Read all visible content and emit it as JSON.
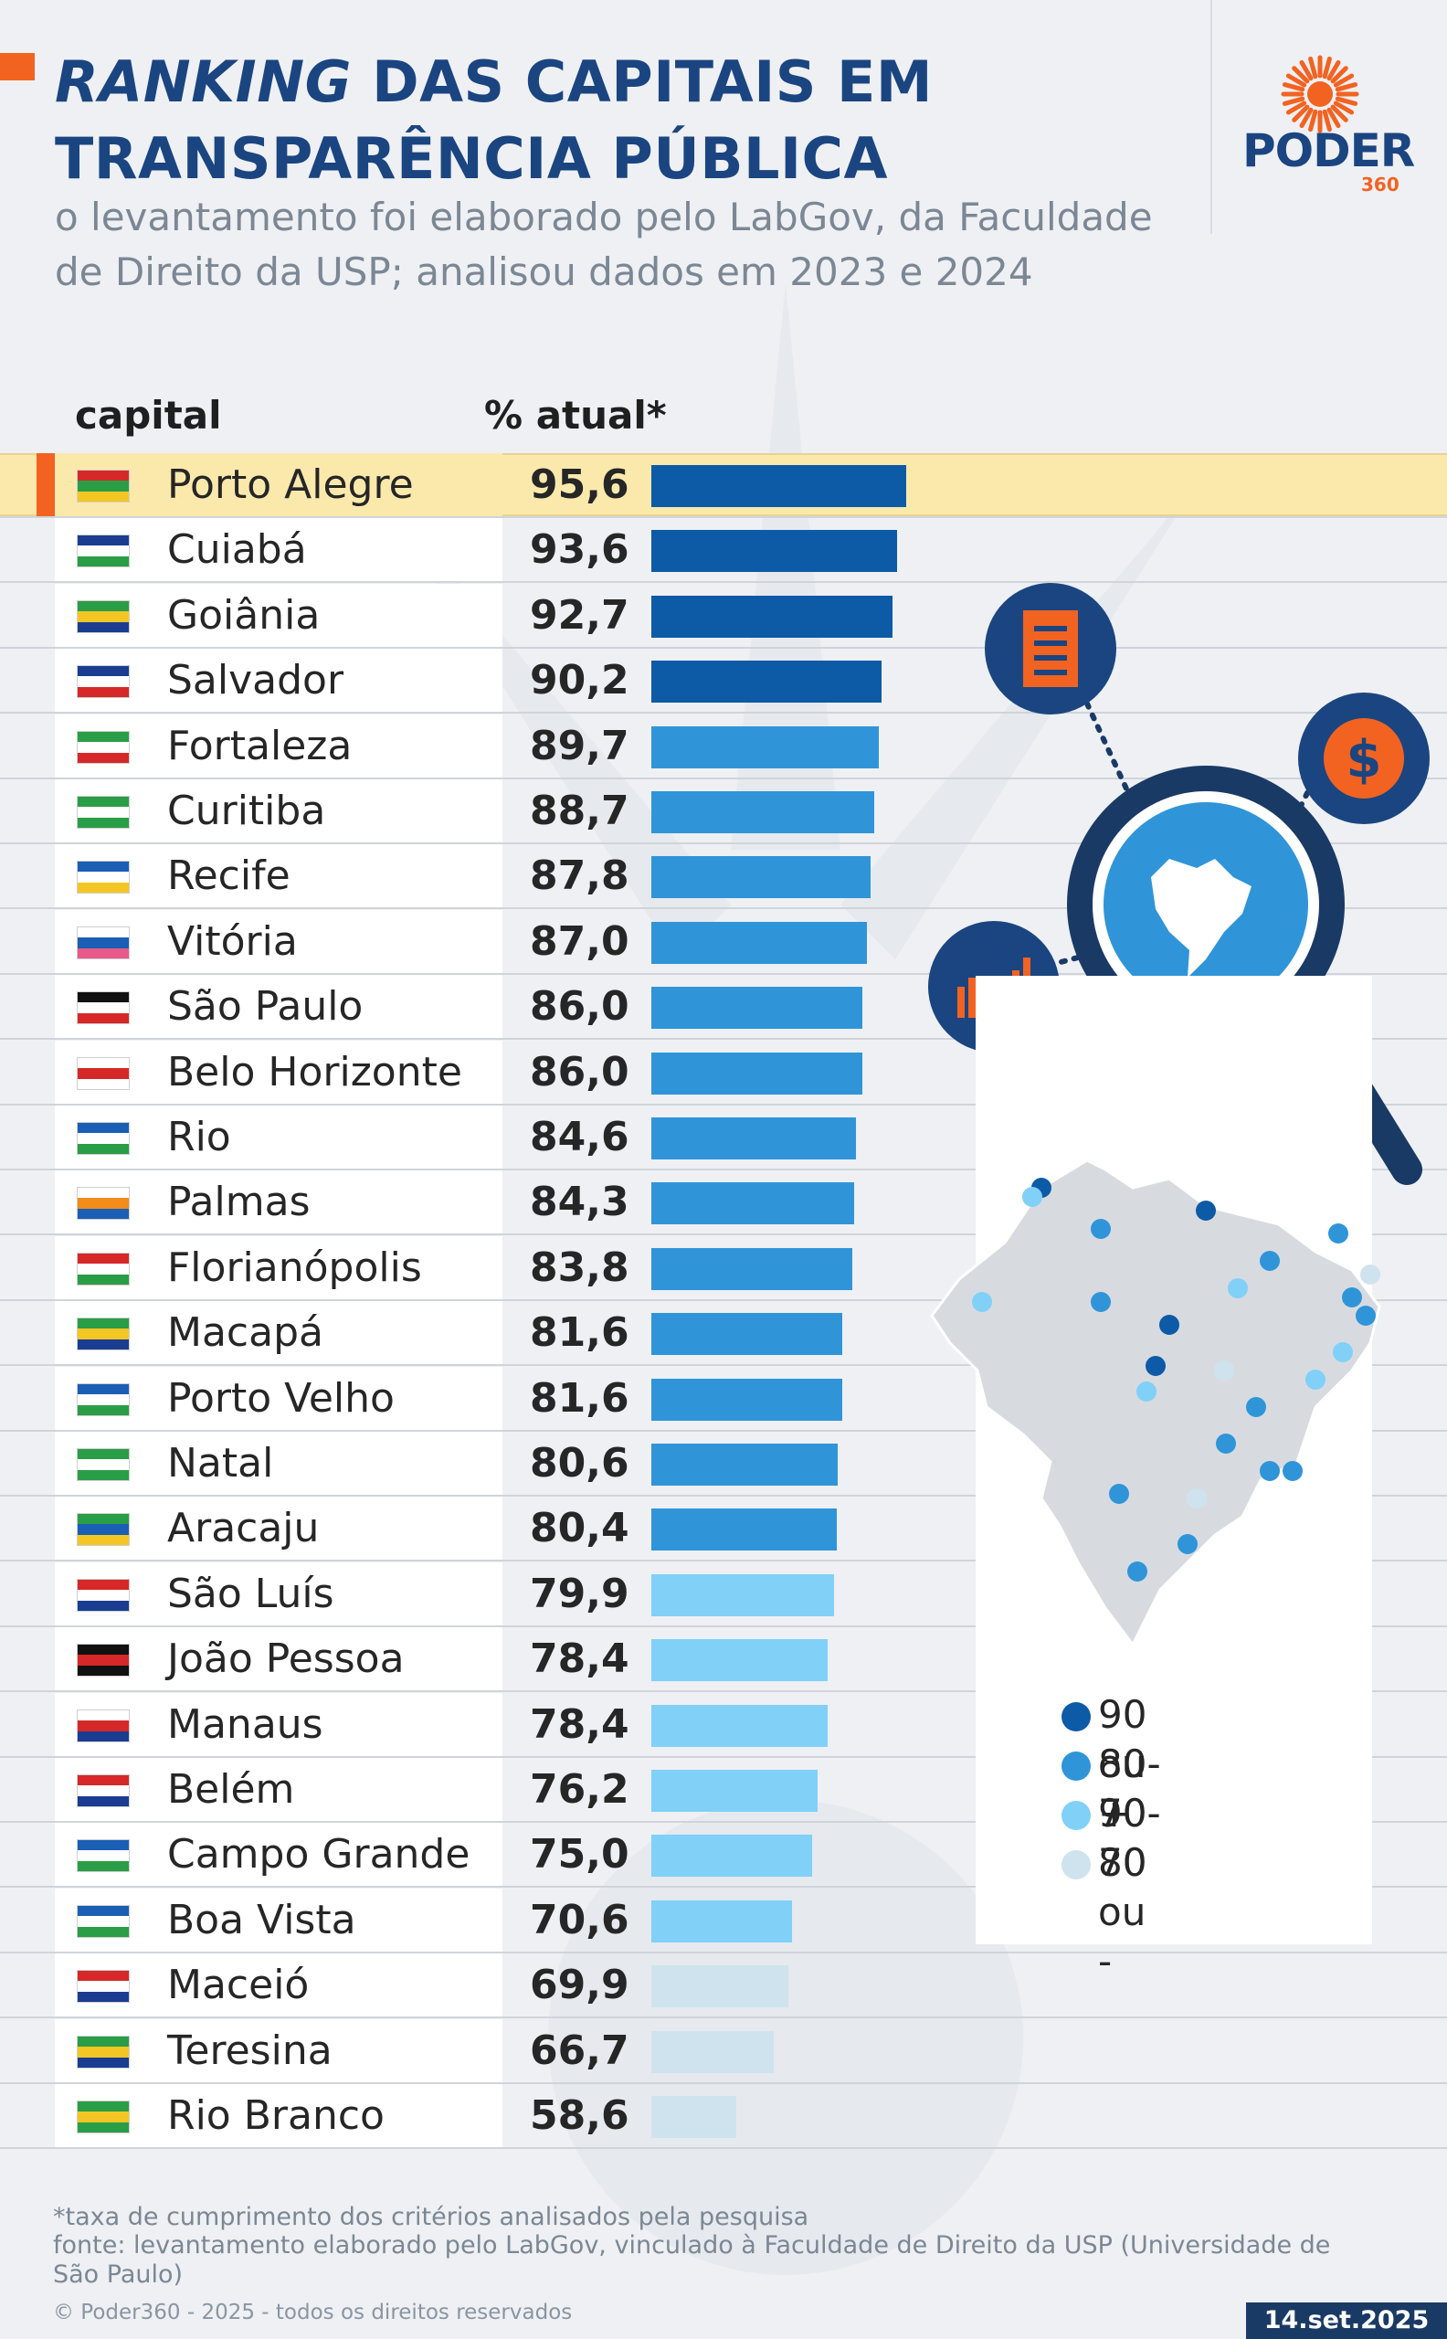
{
  "header": {
    "title_italic": "RANKING",
    "title_rest1": " DAS CAPITAIS EM",
    "title_line2": "TRANSPARÊNCIA PÚBLICA",
    "subtitle": "o levantamento foi elaborado pelo LabGov, da Faculdade de Direito da USP; analisou dados em 2023 e 2024",
    "logo_word": "PODER",
    "logo_num": "360"
  },
  "columns": {
    "capital": "capital",
    "value": "% atual*"
  },
  "colors": {
    "brand_orange": "#f26322",
    "navy": "#1a4580",
    "tier_90": "#0d5aa7",
    "tier_80": "#2f95d8",
    "tier_70": "#80d0f8",
    "tier_low": "#cfe3ee",
    "highlight": "#fbe9ac"
  },
  "chart_data": {
    "type": "bar",
    "orientation": "horizontal",
    "categories": [
      "Porto Alegre",
      "Cuiabá",
      "Goiânia",
      "Salvador",
      "Fortaleza",
      "Curitiba",
      "Recife",
      "Vitória",
      "São Paulo",
      "Belo Horizonte",
      "Rio",
      "Palmas",
      "Florianópolis",
      "Macapá",
      "Porto Velho",
      "Natal",
      "Aracaju",
      "São Luís",
      "João Pessoa",
      "Manaus",
      "Belém",
      "Campo Grande",
      "Boa Vista",
      "Maceió",
      "Teresina",
      "Rio Branco"
    ],
    "values": [
      95.6,
      93.6,
      92.7,
      90.2,
      89.7,
      88.7,
      87.8,
      87.0,
      86.0,
      86.0,
      84.6,
      84.3,
      83.8,
      81.6,
      81.6,
      80.6,
      80.4,
      79.9,
      78.4,
      78.4,
      76.2,
      75.0,
      70.6,
      69.9,
      66.7,
      58.6
    ],
    "value_labels": [
      "95,6",
      "93,6",
      "92,7",
      "90,2",
      "89,7",
      "88,7",
      "87,8",
      "87,0",
      "86,0",
      "86,0",
      "84,6",
      "84,3",
      "83,8",
      "81,6",
      "81,6",
      "80,6",
      "80,4",
      "79,9",
      "78,4",
      "78,4",
      "76,2",
      "75,0",
      "70,6",
      "69,9",
      "66,7",
      "58,6"
    ],
    "highlighted": "Porto Alegre",
    "xlim": [
      0,
      100
    ],
    "legend": {
      "placement": "right",
      "entries": [
        {
          "label": "90 ou +",
          "color": "#0d5aa7"
        },
        {
          "label": "80-90",
          "color": "#2f95d8"
        },
        {
          "label": "70-80",
          "color": "#80d0f8"
        },
        {
          "label": "70 ou -",
          "color": "#cfe3ee"
        }
      ]
    }
  },
  "flags": [
    {
      "c": [
        "#d62828",
        "#2a9d47",
        "#f3c623"
      ]
    },
    {
      "c": [
        "#1a3d91",
        "#ffffff",
        "#2a9d47"
      ]
    },
    {
      "c": [
        "#2a9d47",
        "#f3c623",
        "#1a3d91"
      ]
    },
    {
      "c": [
        "#1a3d91",
        "#ffffff",
        "#d62828"
      ]
    },
    {
      "c": [
        "#2a9d47",
        "#ffffff",
        "#d62828"
      ]
    },
    {
      "c": [
        "#2a9d47",
        "#ffffff",
        "#2a9d47"
      ]
    },
    {
      "c": [
        "#1a5fb4",
        "#ffffff",
        "#f3c623"
      ]
    },
    {
      "c": [
        "#ffffff",
        "#1a5fb4",
        "#e85a8a"
      ]
    },
    {
      "c": [
        "#111111",
        "#ffffff",
        "#d62828"
      ]
    },
    {
      "c": [
        "#ffffff",
        "#d62828",
        "#ffffff"
      ]
    },
    {
      "c": [
        "#1a5fb4",
        "#ffffff",
        "#2a9d47"
      ]
    },
    {
      "c": [
        "#ffffff",
        "#f28c1a",
        "#1a5fb4"
      ]
    },
    {
      "c": [
        "#d62828",
        "#ffffff",
        "#2a9d47"
      ]
    },
    {
      "c": [
        "#2a9d47",
        "#f3c623",
        "#1a3d91"
      ]
    },
    {
      "c": [
        "#1a5fb4",
        "#ffffff",
        "#2a9d47"
      ]
    },
    {
      "c": [
        "#2a9d47",
        "#ffffff",
        "#2a9d47"
      ]
    },
    {
      "c": [
        "#2a9d47",
        "#1a5fb4",
        "#f3c623"
      ]
    },
    {
      "c": [
        "#d62828",
        "#ffffff",
        "#1a3d91"
      ]
    },
    {
      "c": [
        "#111111",
        "#d62828",
        "#111111"
      ]
    },
    {
      "c": [
        "#ffffff",
        "#d62828",
        "#1a3d91"
      ]
    },
    {
      "c": [
        "#d62828",
        "#ffffff",
        "#1a3d91"
      ]
    },
    {
      "c": [
        "#1a5fb4",
        "#ffffff",
        "#2a9d47"
      ]
    },
    {
      "c": [
        "#1a5fb4",
        "#ffffff",
        "#2a9d47"
      ]
    },
    {
      "c": [
        "#d62828",
        "#ffffff",
        "#1a3d91"
      ]
    },
    {
      "c": [
        "#2a9d47",
        "#f3c623",
        "#1a3d91"
      ]
    },
    {
      "c": [
        "#2a9d47",
        "#f3c623",
        "#2a9d47"
      ]
    }
  ],
  "footer": {
    "note": "*taxa de cumprimento dos critérios analisados pela pesquisa",
    "source": "fonte: levantamento elaborado pelo LabGov, vinculado à Faculdade de Direito da USP (Universidade de São Paulo)",
    "copyright": "© Poder360 - 2025 - todos os direitos reservados",
    "date": "14.set.2025"
  }
}
